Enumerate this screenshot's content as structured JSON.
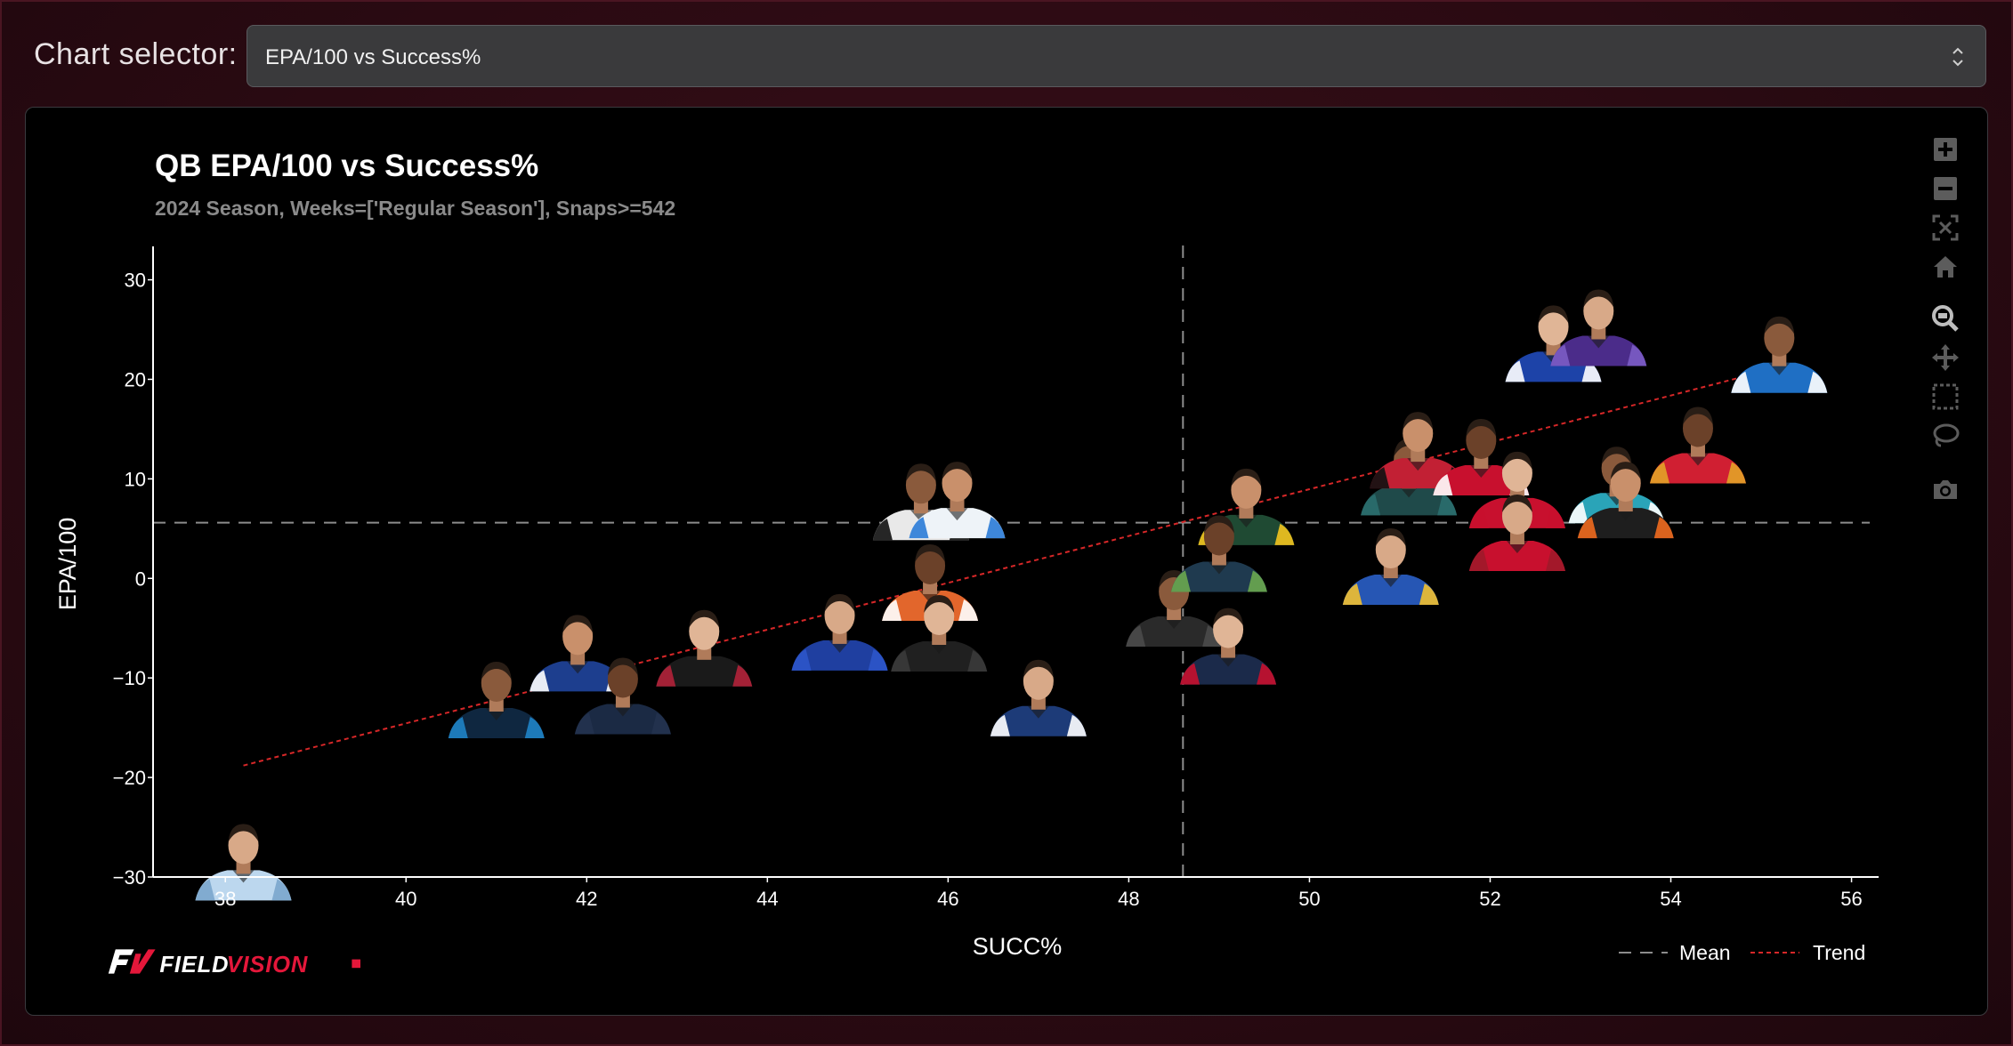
{
  "selector": {
    "label": "Chart selector:",
    "value": "EPA/100 vs Success%"
  },
  "toolbar": {
    "icons": [
      "zoom-in-icon",
      "zoom-out-icon",
      "autoscale-icon",
      "home-reset-icon",
      "zoom-box-icon",
      "pan-icon",
      "box-select-icon",
      "lasso-select-icon",
      "camera-icon"
    ]
  },
  "brand": {
    "part1": "FIELD",
    "part2": "VISION"
  },
  "colors": {
    "trend": "#d62728",
    "mean": "#8c8c8c",
    "accent": "#e4173a"
  },
  "chart_data": {
    "type": "scatter",
    "title": "QB EPA/100 vs Success%",
    "subtitle": "2024 Season, Weeks=['Regular Season'], Snaps>=542",
    "xlabel": "SUCC%",
    "ylabel": "EPA/100",
    "xlim": [
      37.2,
      56.3
    ],
    "ylim": [
      -30,
      33
    ],
    "xticks": [
      38,
      40,
      42,
      44,
      46,
      48,
      50,
      52,
      54,
      56
    ],
    "yticks": [
      -30,
      -20,
      -10,
      0,
      10,
      20,
      30
    ],
    "xtick_labels": [
      "38",
      "40",
      "42",
      "44",
      "46",
      "48",
      "50",
      "52",
      "54",
      "56"
    ],
    "ytick_labels": [
      "−30",
      "−20",
      "−10",
      "0",
      "10",
      "20",
      "30"
    ],
    "mean_x": 48.6,
    "mean_y": 5.6,
    "trend": {
      "x": [
        38.2,
        55.2
      ],
      "y": [
        -18.8,
        21.2
      ]
    },
    "legend": {
      "placement": "bottom-right",
      "mean_label": "Mean",
      "trend_label": "Trend"
    },
    "grid": false,
    "points": [
      {
        "x": 38.2,
        "y": -29.5,
        "helmet": "#bcd7ee",
        "trim": "#7aa6cc"
      },
      {
        "x": 41.0,
        "y": -13.2,
        "helmet": "#0f2740",
        "trim": "#1f84c6"
      },
      {
        "x": 41.9,
        "y": -8.5,
        "helmet": "#1d3e8e",
        "trim": "#ffffff"
      },
      {
        "x": 42.4,
        "y": -12.8,
        "helmet": "#1b2a44",
        "trim": "#24324f"
      },
      {
        "x": 43.3,
        "y": -8.0,
        "helmet": "#1a1a1a",
        "trim": "#b3223a"
      },
      {
        "x": 44.8,
        "y": -6.4,
        "helmet": "#1f3fa0",
        "trim": "#2c55c9"
      },
      {
        "x": 45.7,
        "y": 6.7,
        "helmet": "#e9e9e9",
        "trim": "#111111"
      },
      {
        "x": 46.1,
        "y": 6.9,
        "helmet": "#eef3f8",
        "trim": "#2a7bd6"
      },
      {
        "x": 45.8,
        "y": -1.4,
        "helmet": "#e2662c",
        "trim": "#ffffff"
      },
      {
        "x": 45.9,
        "y": -6.5,
        "helmet": "#202020",
        "trim": "#3a3a3a"
      },
      {
        "x": 47.0,
        "y": -13.0,
        "helmet": "#1d3b78",
        "trim": "#ffffff"
      },
      {
        "x": 48.5,
        "y": -4.0,
        "helmet": "#2a2a2a",
        "trim": "#4a4a4a"
      },
      {
        "x": 49.3,
        "y": 6.2,
        "helmet": "#1f4a33",
        "trim": "#f3c41e"
      },
      {
        "x": 49.0,
        "y": 1.5,
        "helmet": "#1f3a4f",
        "trim": "#6aa84f"
      },
      {
        "x": 49.1,
        "y": -7.8,
        "helmet": "#1b2a4a",
        "trim": "#c8102e"
      },
      {
        "x": 50.9,
        "y": 0.2,
        "helmet": "#2656b4",
        "trim": "#f2c02f"
      },
      {
        "x": 51.1,
        "y": 9.2,
        "helmet": "#1f4a4a",
        "trim": "#2a6e6e"
      },
      {
        "x": 51.2,
        "y": 11.9,
        "helmet": "#c22034",
        "trim": "#111111"
      },
      {
        "x": 51.9,
        "y": 11.2,
        "helmet": "#c8102e",
        "trim": "#ffffff"
      },
      {
        "x": 52.3,
        "y": 7.9,
        "helmet": "#c8102e",
        "trim": "#c8102e"
      },
      {
        "x": 52.3,
        "y": 3.6,
        "helmet": "#c8102e",
        "trim": "#9e1a2a"
      },
      {
        "x": 53.4,
        "y": 8.4,
        "helmet": "#2aa4b8",
        "trim": "#ffffff"
      },
      {
        "x": 53.5,
        "y": 6.9,
        "helmet": "#1e1e1e",
        "trim": "#f06a1e"
      },
      {
        "x": 54.3,
        "y": 12.4,
        "helmet": "#d01f32",
        "trim": "#e2a227"
      },
      {
        "x": 52.7,
        "y": 22.6,
        "helmet": "#1d43a8",
        "trim": "#ffffff"
      },
      {
        "x": 53.2,
        "y": 24.2,
        "helmet": "#4b2c8a",
        "trim": "#7b5cc4"
      },
      {
        "x": 55.2,
        "y": 21.5,
        "helmet": "#1f6fc4",
        "trim": "#ffffff"
      }
    ]
  }
}
